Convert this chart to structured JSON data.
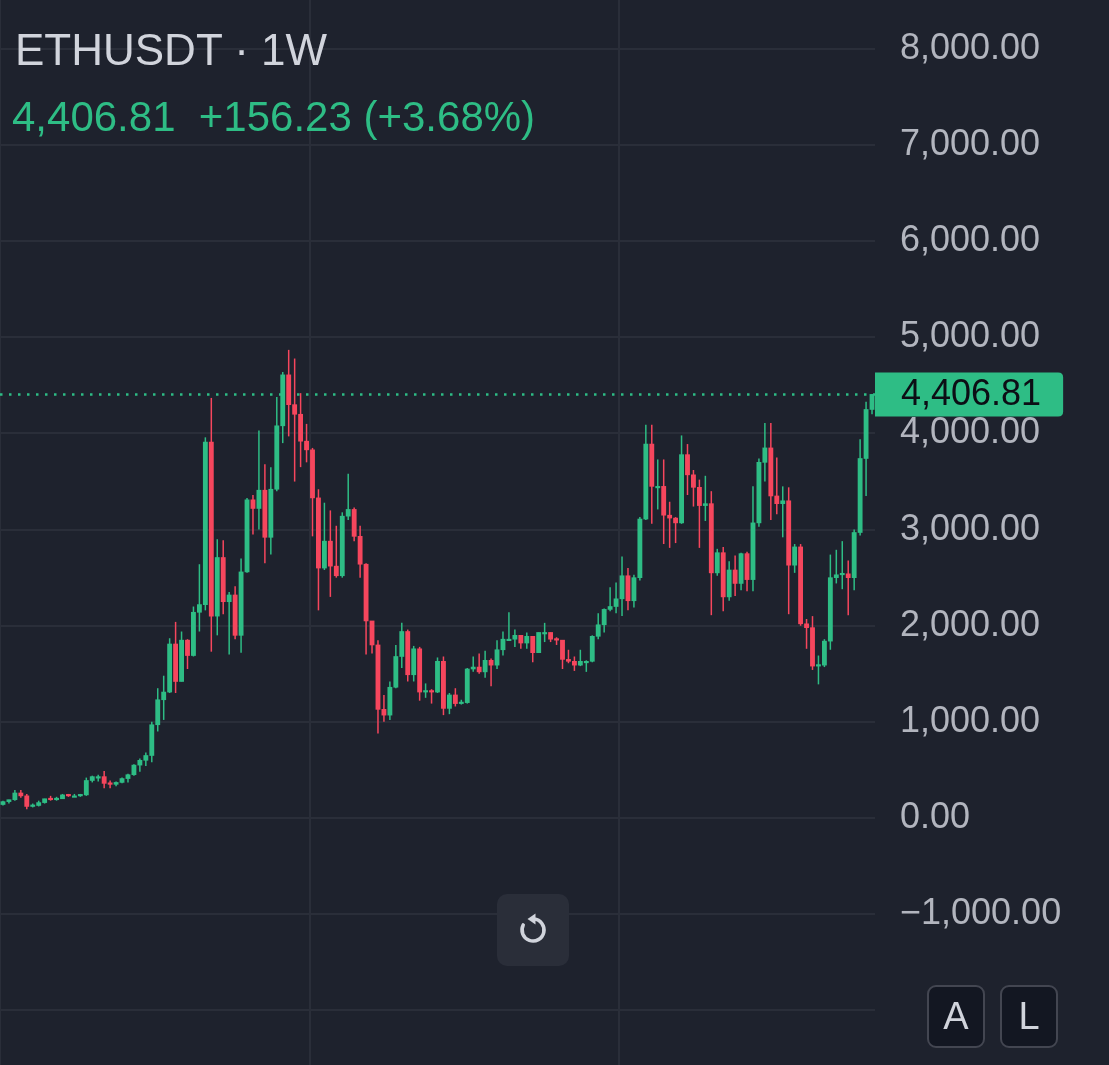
{
  "chart_data": {
    "type": "candlestick",
    "title": "ETHUSDT · 1W",
    "subtitle": "4,406.81  +156.23 (+3.68%)",
    "categories": [
      null,
      null,
      null,
      null,
      null,
      null,
      null,
      null,
      null,
      null,
      null,
      null,
      null,
      null,
      null,
      null,
      null,
      null,
      null,
      null,
      null,
      null,
      null,
      null,
      null,
      null,
      null,
      null,
      null,
      null,
      null,
      null,
      null,
      null,
      null,
      null,
      null,
      null,
      null,
      null,
      null,
      null,
      null,
      null,
      null,
      null,
      null,
      null,
      null,
      null,
      null,
      null,
      null,
      null,
      null,
      null,
      null,
      null,
      null,
      null,
      null,
      null,
      null,
      null,
      null,
      null,
      null,
      null,
      null,
      null,
      null,
      null,
      null,
      null,
      null,
      null,
      null,
      null,
      null,
      null,
      null,
      null,
      null,
      null,
      null,
      null,
      null,
      null,
      null,
      null,
      null,
      null,
      null,
      null,
      null,
      null,
      null,
      null,
      null,
      null,
      null,
      null,
      null,
      null,
      null,
      null,
      null,
      null,
      null,
      null,
      null,
      null,
      null,
      null,
      null,
      null,
      null,
      null,
      null,
      null,
      null,
      null,
      null,
      null,
      null,
      null,
      null,
      null,
      null,
      null,
      null,
      null,
      null,
      null,
      null,
      null,
      null,
      null,
      null,
      null,
      null,
      null,
      null,
      null,
      null,
      null,
      null
    ],
    "ohlc": [
      [
        140,
        180,
        130,
        170
      ],
      [
        170,
        190,
        150,
        190
      ],
      [
        190,
        290,
        180,
        260
      ],
      [
        260,
        290,
        210,
        230
      ],
      [
        230,
        250,
        90,
        120
      ],
      [
        120,
        150,
        110,
        130
      ],
      [
        130,
        180,
        120,
        160
      ],
      [
        160,
        200,
        150,
        200
      ],
      [
        200,
        230,
        180,
        190
      ],
      [
        190,
        220,
        180,
        200
      ],
      [
        200,
        250,
        200,
        240
      ],
      [
        240,
        250,
        220,
        230
      ],
      [
        230,
        250,
        220,
        230
      ],
      [
        230,
        250,
        220,
        240
      ],
      [
        240,
        420,
        230,
        390
      ],
      [
        390,
        440,
        370,
        430
      ],
      [
        430,
        450,
        380,
        430
      ],
      [
        430,
        490,
        310,
        360
      ],
      [
        360,
        390,
        310,
        350
      ],
      [
        350,
        380,
        330,
        370
      ],
      [
        370,
        420,
        360,
        410
      ],
      [
        410,
        460,
        370,
        450
      ],
      [
        450,
        560,
        440,
        550
      ],
      [
        550,
        620,
        480,
        600
      ],
      [
        600,
        680,
        540,
        650
      ],
      [
        650,
        1000,
        580,
        970
      ],
      [
        970,
        1350,
        900,
        1230
      ],
      [
        1230,
        1480,
        1020,
        1310
      ],
      [
        1310,
        1870,
        1300,
        1810
      ],
      [
        1810,
        2040,
        1300,
        1420
      ],
      [
        1420,
        1940,
        1420,
        1850
      ],
      [
        1850,
        1860,
        1550,
        1690
      ],
      [
        1690,
        2200,
        1680,
        2140
      ],
      [
        2140,
        2640,
        1940,
        2220
      ],
      [
        2220,
        3960,
        2160,
        3910
      ],
      [
        3910,
        4370,
        1730,
        2100
      ],
      [
        2100,
        2900,
        1900,
        2710
      ],
      [
        2710,
        2890,
        2120,
        2250
      ],
      [
        2250,
        2350,
        1700,
        2320
      ],
      [
        2320,
        2410,
        1860,
        1900
      ],
      [
        1900,
        2700,
        1720,
        2560
      ],
      [
        2560,
        3330,
        2550,
        3310
      ],
      [
        3310,
        3360,
        2950,
        3220
      ],
      [
        3220,
        4030,
        3000,
        3410
      ],
      [
        3410,
        3680,
        2650,
        2920
      ],
      [
        2920,
        3650,
        2740,
        3420
      ],
      [
        3420,
        4380,
        3400,
        4080
      ],
      [
        4080,
        4640,
        3900,
        4610
      ],
      [
        4610,
        4870,
        3970,
        4300
      ],
      [
        4300,
        4780,
        3500,
        4200
      ],
      [
        4200,
        4420,
        3650,
        3920
      ],
      [
        3920,
        4100,
        3700,
        3830
      ],
      [
        3830,
        3850,
        2930,
        3330
      ],
      [
        3330,
        3420,
        2160,
        2600
      ],
      [
        2600,
        3280,
        2580,
        2880
      ],
      [
        2880,
        3200,
        2300,
        2620
      ],
      [
        2620,
        3040,
        2500,
        2520
      ],
      [
        2520,
        3180,
        2500,
        3140
      ],
      [
        3140,
        3580,
        3100,
        3210
      ],
      [
        3210,
        3230,
        2880,
        2930
      ],
      [
        2930,
        3040,
        2500,
        2640
      ],
      [
        2640,
        2650,
        1700,
        2050
      ],
      [
        2050,
        2050,
        1710,
        1800
      ],
      [
        1800,
        1850,
        880,
        1130
      ],
      [
        1130,
        1280,
        1000,
        1070
      ],
      [
        1070,
        1420,
        1020,
        1360
      ],
      [
        1360,
        1800,
        1350,
        1680
      ],
      [
        1680,
        2030,
        1560,
        1940
      ],
      [
        1940,
        1960,
        1420,
        1490
      ],
      [
        1490,
        1790,
        1420,
        1760
      ],
      [
        1760,
        1780,
        1220,
        1310
      ],
      [
        1310,
        1400,
        1250,
        1320
      ],
      [
        1320,
        1340,
        1190,
        1310
      ],
      [
        1310,
        1670,
        1300,
        1630
      ],
      [
        1630,
        1680,
        1070,
        1140
      ],
      [
        1140,
        1300,
        1080,
        1280
      ],
      [
        1280,
        1350,
        1160,
        1190
      ],
      [
        1190,
        1230,
        1180,
        1200
      ],
      [
        1200,
        1560,
        1190,
        1550
      ],
      [
        1550,
        1680,
        1520,
        1570
      ],
      [
        1570,
        1710,
        1500,
        1520
      ],
      [
        1520,
        1740,
        1460,
        1640
      ],
      [
        1640,
        1660,
        1370,
        1590
      ],
      [
        1590,
        1850,
        1550,
        1750
      ],
      [
        1750,
        1940,
        1690,
        1860
      ],
      [
        1860,
        2140,
        1840,
        1860
      ],
      [
        1860,
        1960,
        1780,
        1900
      ],
      [
        1900,
        1900,
        1760,
        1820
      ],
      [
        1820,
        1930,
        1760,
        1890
      ],
      [
        1890,
        1890,
        1620,
        1720
      ],
      [
        1720,
        1930,
        1720,
        1930
      ],
      [
        1930,
        2030,
        1830,
        1930
      ],
      [
        1930,
        1930,
        1830,
        1860
      ],
      [
        1860,
        1880,
        1800,
        1850
      ],
      [
        1850,
        1850,
        1550,
        1650
      ],
      [
        1650,
        1750,
        1610,
        1630
      ],
      [
        1630,
        1680,
        1530,
        1590
      ],
      [
        1590,
        1750,
        1580,
        1630
      ],
      [
        1630,
        1640,
        1520,
        1630
      ],
      [
        1630,
        1900,
        1620,
        1890
      ],
      [
        1890,
        2130,
        1860,
        2010
      ],
      [
        2010,
        2180,
        1930,
        2170
      ],
      [
        2170,
        2400,
        2150,
        2200
      ],
      [
        2200,
        2450,
        2130,
        2280
      ],
      [
        2280,
        2720,
        2100,
        2520
      ],
      [
        2520,
        2600,
        2160,
        2260
      ],
      [
        2260,
        2530,
        2190,
        2500
      ],
      [
        2500,
        3130,
        2470,
        3110
      ],
      [
        3110,
        4090,
        3100,
        3890
      ],
      [
        3890,
        4090,
        3060,
        3450
      ],
      [
        3450,
        3730,
        3210,
        3450
      ],
      [
        3450,
        3730,
        2850,
        3150
      ],
      [
        3150,
        3290,
        2810,
        3120
      ],
      [
        3120,
        3130,
        2860,
        3070
      ],
      [
        3070,
        3980,
        3060,
        3780
      ],
      [
        3780,
        3890,
        3360,
        3570
      ],
      [
        3570,
        3620,
        3240,
        3440
      ],
      [
        3440,
        3520,
        2810,
        3250
      ],
      [
        3250,
        3560,
        3090,
        3270
      ],
      [
        3270,
        3400,
        2110,
        2550
      ],
      [
        2550,
        2800,
        2520,
        2760
      ],
      [
        2760,
        2820,
        2150,
        2300
      ],
      [
        2300,
        2670,
        2260,
        2580
      ],
      [
        2580,
        2730,
        2310,
        2440
      ],
      [
        2440,
        2760,
        2370,
        2750
      ],
      [
        2750,
        2770,
        2360,
        2480
      ],
      [
        2480,
        3450,
        2360,
        3070
      ],
      [
        3070,
        3740,
        3030,
        3700
      ],
      [
        3700,
        4110,
        3500,
        3850
      ],
      [
        3850,
        4110,
        3100,
        3350
      ],
      [
        3350,
        3750,
        3160,
        3270
      ],
      [
        3270,
        3450,
        2920,
        3300
      ],
      [
        3300,
        3440,
        2120,
        2630
      ],
      [
        2630,
        2850,
        2550,
        2820
      ],
      [
        2820,
        2850,
        2000,
        2020
      ],
      [
        2020,
        2070,
        1760,
        1980
      ],
      [
        1980,
        2100,
        1540,
        1580
      ],
      [
        1580,
        1690,
        1390,
        1590
      ],
      [
        1590,
        1860,
        1570,
        1840
      ],
      [
        1840,
        2740,
        1750,
        2500
      ],
      [
        2500,
        2790,
        2440,
        2530
      ],
      [
        2530,
        2880,
        2380,
        2540
      ],
      [
        2540,
        2680,
        2110,
        2500
      ],
      [
        2500,
        3000,
        2370,
        2970
      ],
      [
        2970,
        3940,
        2940,
        3740
      ],
      [
        3740,
        4330,
        3350,
        4250
      ],
      [
        4250,
        4410,
        4200,
        4406.81
      ]
    ],
    "colors": [
      "#2ebd85",
      "#2ebd85",
      "#2ebd85",
      "#f6465d",
      "#f6465d",
      "#2ebd85",
      "#2ebd85",
      "#2ebd85",
      "#f6465d",
      "#2ebd85",
      "#2ebd85",
      "#f6465d",
      "#2ebd85",
      "#2ebd85",
      "#2ebd85",
      "#2ebd85",
      "#2ebd85",
      "#f6465d",
      "#f6465d",
      "#2ebd85",
      "#2ebd85",
      "#2ebd85",
      "#2ebd85",
      "#2ebd85",
      "#2ebd85",
      "#2ebd85",
      "#2ebd85",
      "#2ebd85",
      "#2ebd85",
      "#f6465d",
      "#2ebd85",
      "#f6465d",
      "#2ebd85",
      "#2ebd85",
      "#2ebd85",
      "#f6465d",
      "#2ebd85",
      "#f6465d",
      "#2ebd85",
      "#f6465d",
      "#2ebd85",
      "#2ebd85",
      "#f6465d",
      "#2ebd85",
      "#f6465d",
      "#2ebd85",
      "#2ebd85",
      "#2ebd85",
      "#f6465d",
      "#f6465d",
      "#f6465d",
      "#f6465d",
      "#f6465d",
      "#f6465d",
      "#2ebd85",
      "#f6465d",
      "#f6465d",
      "#2ebd85",
      "#2ebd85",
      "#f6465d",
      "#f6465d",
      "#f6465d",
      "#f6465d",
      "#f6465d",
      "#f6465d",
      "#2ebd85",
      "#2ebd85",
      "#2ebd85",
      "#f6465d",
      "#2ebd85",
      "#f6465d",
      "#2ebd85",
      "#f6465d",
      "#2ebd85",
      "#f6465d",
      "#2ebd85",
      "#f6465d",
      "#2ebd85",
      "#2ebd85",
      "#2ebd85",
      "#f6465d",
      "#2ebd85",
      "#f6465d",
      "#2ebd85",
      "#2ebd85",
      "#2ebd85",
      "#2ebd85",
      "#f6465d",
      "#2ebd85",
      "#f6465d",
      "#2ebd85",
      "#2ebd85",
      "#f6465d",
      "#f6465d",
      "#f6465d",
      "#f6465d",
      "#f6465d",
      "#2ebd85",
      "#2ebd85",
      "#2ebd85",
      "#2ebd85",
      "#2ebd85",
      "#2ebd85",
      "#2ebd85",
      "#2ebd85",
      "#f6465d",
      "#2ebd85",
      "#2ebd85",
      "#2ebd85",
      "#f6465d",
      "#2ebd85",
      "#f6465d",
      "#f6465d",
      "#f6465d",
      "#2ebd85",
      "#f6465d",
      "#f6465d",
      "#f6465d",
      "#2ebd85",
      "#f6465d",
      "#2ebd85",
      "#f6465d",
      "#2ebd85",
      "#f6465d",
      "#2ebd85",
      "#f6465d",
      "#2ebd85",
      "#2ebd85",
      "#2ebd85",
      "#f6465d",
      "#f6465d",
      "#2ebd85",
      "#f6465d",
      "#2ebd85",
      "#f6465d",
      "#f6465d",
      "#f6465d",
      "#2ebd85",
      "#2ebd85",
      "#2ebd85",
      "#2ebd85",
      "#2ebd85",
      "#f6465d",
      "#2ebd85",
      "#2ebd85",
      "#2ebd85",
      "#2ebd85"
    ],
    "ylim": [
      -2570,
      8510
    ],
    "yticks": [
      {
        "value": -2000,
        "label": null
      },
      {
        "value": -1000,
        "label": "−1,000.00"
      },
      {
        "value": 0,
        "label": "0.00"
      },
      {
        "value": 1000,
        "label": "1,000.00"
      },
      {
        "value": 2000,
        "label": "2,000.00"
      },
      {
        "value": 3000,
        "label": "3,000.00"
      },
      {
        "value": 4000,
        "label": "4,000.00"
      },
      {
        "value": 5000,
        "label": "5,000.00"
      },
      {
        "value": 6000,
        "label": "6,000.00"
      },
      {
        "value": 7000,
        "label": "7,000.00"
      },
      {
        "value": 8000,
        "label": "8,000.00"
      }
    ],
    "grid": true,
    "tick_labels": "y",
    "ref_lines": [
      {
        "axis": "y",
        "value": 4406.81,
        "label": "4,406.81",
        "color": "#2ebd85",
        "line_style": "dotted"
      }
    ],
    "annotations": [
      "A",
      "L"
    ]
  }
}
